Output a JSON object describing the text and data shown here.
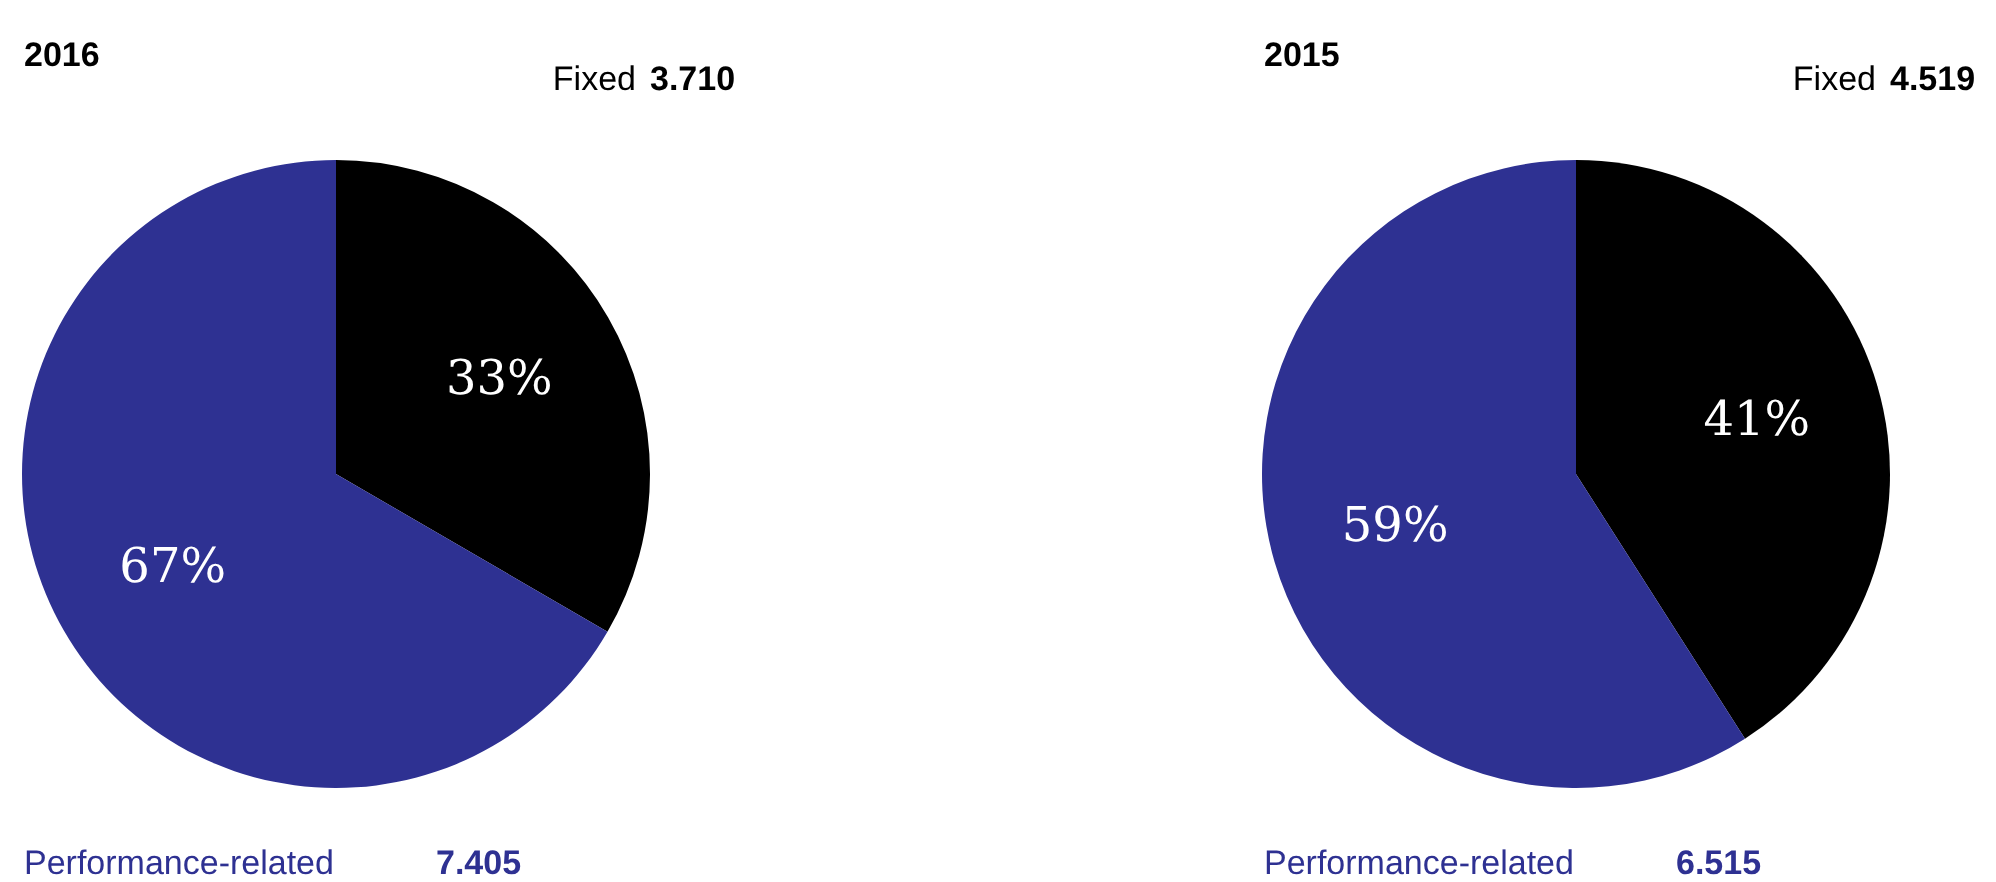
{
  "chart_data": [
    {
      "type": "pie",
      "title": "2016",
      "categories": [
        "Fixed",
        "Performance-related"
      ],
      "values": [
        3.71,
        7.405
      ],
      "value_labels": [
        "3.710",
        "7.405"
      ],
      "colors": [
        "#000000",
        "#2e3192"
      ],
      "annotations": [
        {
          "text": "33%",
          "x": "Fixed"
        },
        {
          "text": "67%",
          "x": "Performance-related"
        }
      ],
      "legend": false
    },
    {
      "type": "pie",
      "title": "2015",
      "categories": [
        "Fixed",
        "Performance-related"
      ],
      "values": [
        4.519,
        6.515
      ],
      "value_labels": [
        "4.519",
        "6.515"
      ],
      "colors": [
        "#000000",
        "#2e3192"
      ],
      "annotations": [
        {
          "text": "41%",
          "x": "Fixed"
        },
        {
          "text": "59%",
          "x": "Performance-related"
        }
      ],
      "legend": false
    }
  ]
}
